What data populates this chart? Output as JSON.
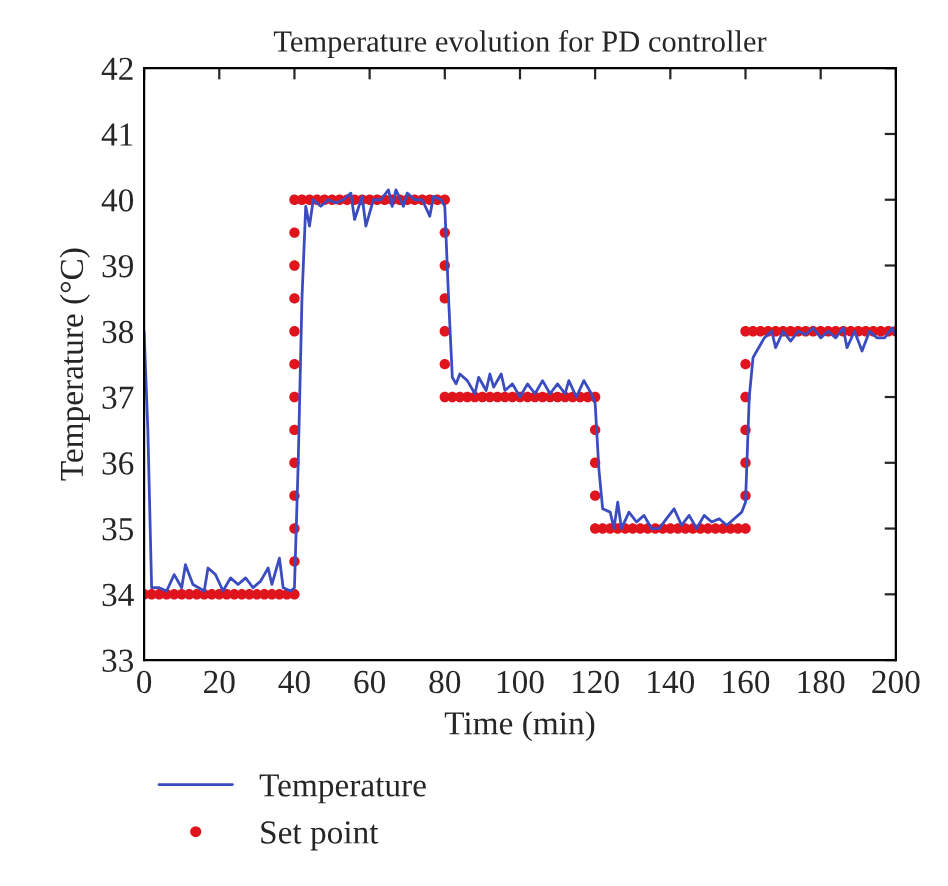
{
  "chart_data": {
    "type": "line",
    "title": "Temperature evolution for PD controller",
    "xlabel": "Time (min)",
    "ylabel": "Temperature (°C)",
    "xlim": [
      0,
      200
    ],
    "xticks": [
      0,
      20,
      40,
      60,
      80,
      100,
      120,
      140,
      160,
      180,
      200
    ],
    "ylim": [
      33,
      42
    ],
    "yticks": [
      33,
      34,
      35,
      36,
      37,
      38,
      39,
      40,
      41,
      42
    ],
    "grid": false,
    "legend": "bottom left",
    "series": [
      {
        "name": "Temperature",
        "color": "#3a4cc0",
        "marker": "none",
        "line_style": "solid",
        "x": [
          0,
          1,
          2,
          4,
          6,
          8,
          10,
          11,
          13,
          16,
          17,
          19,
          21,
          23,
          25,
          27,
          29,
          31,
          33,
          34,
          36,
          37,
          39,
          40,
          41,
          42,
          43,
          44,
          45,
          47,
          49,
          51,
          53,
          55,
          56,
          58,
          59,
          61,
          63,
          65,
          66,
          67,
          69,
          70,
          72,
          74,
          76,
          77,
          79,
          80,
          81,
          82,
          83,
          84,
          86,
          88,
          89,
          91,
          92,
          93,
          95,
          96,
          98,
          100,
          102,
          104,
          106,
          108,
          110,
          112,
          113,
          115,
          117,
          119,
          120,
          121,
          122,
          124,
          125,
          126,
          127,
          129,
          131,
          133,
          135,
          137,
          139,
          141,
          143,
          145,
          147,
          149,
          151,
          153,
          155,
          157,
          159,
          160,
          161,
          162,
          163,
          165,
          167,
          168,
          170,
          172,
          174,
          176,
          178,
          180,
          182,
          184,
          186,
          187,
          189,
          191,
          193,
          195,
          197,
          199,
          200
        ],
        "values": [
          38,
          36.5,
          34.1,
          34.1,
          34.05,
          34.3,
          34.1,
          34.45,
          34.15,
          34.05,
          34.4,
          34.3,
          34.05,
          34.25,
          34.15,
          34.25,
          34.1,
          34.2,
          34.4,
          34.15,
          34.55,
          34.1,
          34.05,
          34.1,
          36,
          38.5,
          39.9,
          39.6,
          40,
          39.9,
          40,
          39.95,
          40,
          40.1,
          39.7,
          40.05,
          39.6,
          40,
          40,
          40.15,
          39.9,
          40.15,
          39.9,
          40.1,
          40,
          40,
          39.75,
          40.05,
          40,
          39.9,
          38.5,
          37.3,
          37.2,
          37.35,
          37.25,
          37.05,
          37.3,
          37.1,
          37.35,
          37.15,
          37.35,
          37.1,
          37.2,
          37,
          37.2,
          37.05,
          37.25,
          37.05,
          37.2,
          37.05,
          37.25,
          37,
          37.25,
          37.05,
          36.9,
          35.9,
          35.3,
          35.25,
          35,
          35.4,
          35,
          35.25,
          35.1,
          35.2,
          35,
          35,
          35.15,
          35.3,
          35.05,
          35.2,
          35,
          35.2,
          35.1,
          35.15,
          35.05,
          35.15,
          35.25,
          35.4,
          37,
          37.6,
          37.7,
          37.9,
          38,
          37.75,
          38,
          37.85,
          38,
          37.95,
          38.05,
          37.9,
          38,
          37.9,
          38.05,
          37.75,
          38,
          37.7,
          38,
          37.9,
          37.9,
          38.05,
          37.95
        ]
      },
      {
        "name": "Set point",
        "type": "scatter",
        "color": "#e0141c",
        "marker": "circle",
        "x": [
          0,
          2,
          4,
          6,
          8,
          10,
          12,
          14,
          16,
          18,
          20,
          22,
          24,
          26,
          28,
          30,
          32,
          34,
          36,
          38,
          40,
          40,
          40,
          40,
          40,
          40,
          40,
          40,
          40,
          40,
          40,
          40,
          40,
          42,
          44,
          46,
          48,
          50,
          52,
          54,
          56,
          58,
          60,
          62,
          64,
          66,
          68,
          70,
          72,
          74,
          76,
          78,
          80,
          80,
          80,
          80,
          80,
          80,
          80,
          82,
          84,
          86,
          88,
          90,
          92,
          94,
          96,
          98,
          100,
          102,
          104,
          106,
          108,
          110,
          112,
          114,
          116,
          118,
          120,
          120,
          120,
          120,
          120,
          122,
          124,
          126,
          128,
          130,
          132,
          134,
          136,
          138,
          140,
          142,
          144,
          146,
          148,
          150,
          152,
          154,
          156,
          158,
          160,
          160,
          160,
          160,
          160,
          160,
          160,
          162,
          164,
          166,
          168,
          170,
          172,
          174,
          176,
          178,
          180,
          182,
          184,
          186,
          188,
          190,
          192,
          194,
          196,
          198,
          200
        ],
        "values": [
          34,
          34,
          34,
          34,
          34,
          34,
          34,
          34,
          34,
          34,
          34,
          34,
          34,
          34,
          34,
          34,
          34,
          34,
          34,
          34,
          34,
          34.5,
          35,
          35.5,
          36,
          36.5,
          37,
          37.5,
          38,
          38.5,
          39,
          39.5,
          40,
          40,
          40,
          40,
          40,
          40,
          40,
          40,
          40,
          40,
          40,
          40,
          40,
          40,
          40,
          40,
          40,
          40,
          40,
          40,
          40,
          39.5,
          39,
          38.5,
          38,
          37.5,
          37,
          37,
          37,
          37,
          37,
          37,
          37,
          37,
          37,
          37,
          37,
          37,
          37,
          37,
          37,
          37,
          37,
          37,
          37,
          37,
          37,
          36.5,
          36,
          35.5,
          35,
          35,
          35,
          35,
          35,
          35,
          35,
          35,
          35,
          35,
          35,
          35,
          35,
          35,
          35,
          35,
          35,
          35,
          35,
          35,
          35,
          35.5,
          36,
          36.5,
          37,
          37.5,
          38,
          38,
          38,
          38,
          38,
          38,
          38,
          38,
          38,
          38,
          38,
          38,
          38,
          38,
          38,
          38,
          38,
          38,
          38,
          38,
          38
        ]
      }
    ]
  }
}
